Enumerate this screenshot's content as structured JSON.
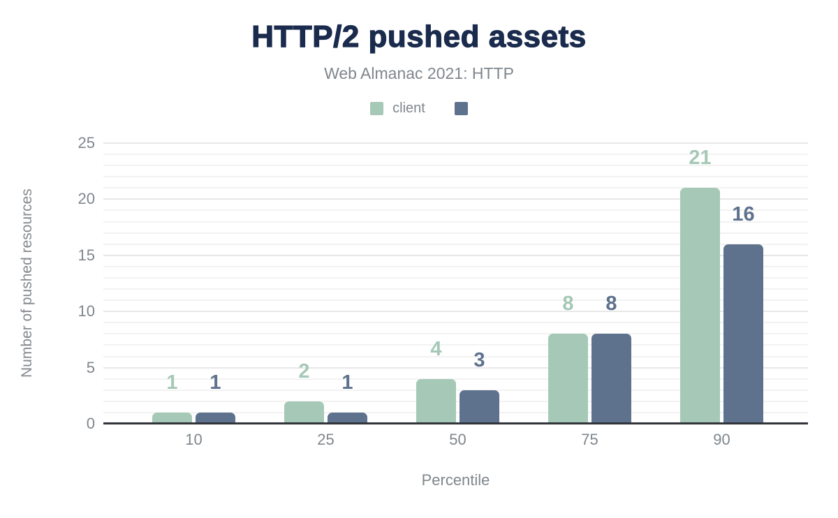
{
  "header": {
    "title": "HTTP/2 pushed assets",
    "subtitle": "Web Almanac 2021: HTTP"
  },
  "legend": [
    {
      "label": "client",
      "color": "#a6c8b6"
    },
    {
      "label": "",
      "color": "#5e718d"
    }
  ],
  "chart_data": {
    "type": "bar",
    "title": "HTTP/2 pushed assets",
    "subtitle": "Web Almanac 2021: HTTP",
    "categories": [
      "10",
      "25",
      "50",
      "75",
      "90"
    ],
    "series": [
      {
        "name": "client",
        "color": "#a6c8b6",
        "values": [
          1,
          2,
          4,
          8,
          21
        ]
      },
      {
        "name": "",
        "color": "#5e718d",
        "values": [
          1,
          1,
          3,
          8,
          16
        ]
      }
    ],
    "xlabel": "Percentile",
    "ylabel": "Number of pushed resources",
    "ylim": [
      0,
      25
    ],
    "yticks": [
      0,
      5,
      10,
      15,
      20,
      25
    ],
    "grid": {
      "minor_step": 1,
      "major_step": 5,
      "on": true
    },
    "legend_position": "top",
    "data_labels": true
  },
  "colors": {
    "title": "#1b2b4d",
    "text_muted": "#7f868c",
    "axis_line": "#32353b",
    "grid_minor": "#f2f2f2",
    "grid_major": "#e7e7e7",
    "background": "#ffffff"
  }
}
